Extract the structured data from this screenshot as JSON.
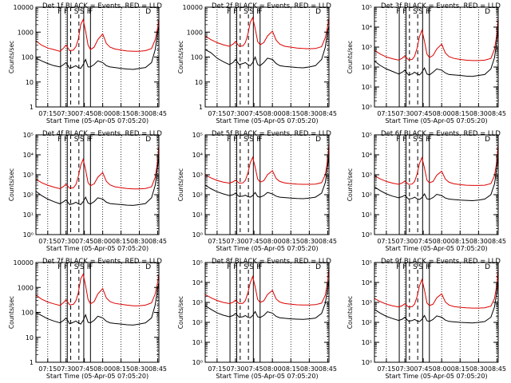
{
  "figure": {
    "start_time_label": "Start Time (05-Apr-05 07:05:20)",
    "ylabel": "Counts/sec",
    "xtick_labels": [
      "07:15",
      "07:30",
      "07:45",
      "08:00",
      "08:15",
      "08:30",
      "08:45"
    ],
    "event_marker_labels": [
      "F",
      "F",
      "S",
      "S",
      "F",
      "F",
      "D"
    ],
    "colors": {
      "events": "#000000",
      "lld": "#dd0000",
      "axes": "#000000"
    }
  },
  "chart_data": [
    {
      "type": "line",
      "title": "Det 1f BLACK = Events, RED = LLD",
      "yscale": "log",
      "ylim": [
        1,
        10000
      ],
      "ytick_labels": [
        "1",
        "10",
        "100",
        "1000",
        "10000"
      ],
      "xlabel": "Start Time (05-Apr-05 07:05:20)",
      "ylabel": "Counts/sec",
      "x_minutes_after_0700": [
        5.3,
        10,
        15,
        20,
        25,
        28,
        30,
        33,
        36,
        38,
        40,
        42,
        44,
        46,
        48,
        50,
        53,
        56,
        60,
        63,
        66,
        70,
        75,
        80,
        85,
        90,
        95,
        100,
        103,
        105,
        106
      ],
      "series": [
        {
          "name": "Events",
          "values": [
            90,
            70,
            55,
            45,
            40,
            50,
            60,
            35,
            40,
            45,
            38,
            35,
            50,
            80,
            40,
            40,
            50,
            70,
            60,
            45,
            40,
            38,
            35,
            33,
            32,
            35,
            38,
            60,
            200,
            1000,
            1800
          ]
        },
        {
          "name": "LLD",
          "values": [
            450,
            300,
            230,
            200,
            170,
            230,
            300,
            180,
            190,
            260,
            500,
            2000,
            3200,
            1100,
            300,
            200,
            250,
            500,
            850,
            350,
            250,
            210,
            190,
            175,
            170,
            170,
            180,
            220,
            500,
            1500,
            3500
          ]
        }
      ]
    },
    {
      "type": "line",
      "title": "Det 2f BLACK = Events, RED = LLD",
      "yscale": "log",
      "ylim": [
        1,
        10000
      ],
      "ytick_labels": [
        "1",
        "10",
        "100",
        "1000",
        "10000"
      ],
      "xlabel": "Start Time (05-Apr-05 07:05:20)",
      "ylabel": "Counts/sec",
      "x_minutes_after_0700": [
        5.3,
        10,
        15,
        20,
        25,
        28,
        30,
        33,
        36,
        38,
        40,
        42,
        44,
        46,
        48,
        50,
        53,
        56,
        60,
        63,
        66,
        70,
        75,
        80,
        85,
        90,
        95,
        100,
        103,
        105,
        106
      ],
      "series": [
        {
          "name": "Events",
          "values": [
            200,
            150,
            90,
            65,
            50,
            60,
            80,
            50,
            55,
            60,
            50,
            45,
            60,
            100,
            50,
            45,
            60,
            90,
            80,
            55,
            45,
            42,
            40,
            38,
            37,
            40,
            45,
            80,
            250,
            1100,
            1800
          ]
        },
        {
          "name": "LLD",
          "values": [
            700,
            500,
            380,
            310,
            270,
            330,
            420,
            270,
            280,
            380,
            800,
            2500,
            3800,
            1400,
            420,
            310,
            380,
            700,
            1100,
            480,
            330,
            270,
            250,
            230,
            220,
            215,
            220,
            260,
            600,
            1800,
            3800
          ]
        }
      ]
    },
    {
      "type": "line",
      "title": "Det 3f BLACK = Events, RED = LLD",
      "yscale": "log",
      "ylim": [
        1,
        100000
      ],
      "ytick_labels": [
        "10⁰",
        "10¹",
        "10²",
        "10³",
        "10⁴",
        "10⁵"
      ],
      "xlabel": "Start Time (05-Apr-05 07:05:20)",
      "ylabel": "Counts/sec",
      "x_minutes_after_0700": [
        5.3,
        10,
        15,
        20,
        25,
        28,
        30,
        33,
        36,
        38,
        40,
        42,
        44,
        46,
        48,
        50,
        53,
        56,
        60,
        63,
        66,
        70,
        75,
        80,
        85,
        90,
        95,
        100,
        103,
        105,
        106
      ],
      "series": [
        {
          "name": "Events",
          "values": [
            200,
            120,
            80,
            60,
            45,
            55,
            70,
            40,
            45,
            55,
            45,
            40,
            55,
            90,
            45,
            40,
            55,
            80,
            70,
            50,
            42,
            40,
            38,
            35,
            34,
            38,
            42,
            80,
            300,
            2500,
            8000
          ]
        },
        {
          "name": "LLD",
          "values": [
            700,
            450,
            320,
            260,
            220,
            280,
            360,
            230,
            240,
            350,
            900,
            3500,
            7000,
            2000,
            450,
            300,
            380,
            800,
            1400,
            500,
            330,
            270,
            240,
            220,
            210,
            210,
            220,
            270,
            800,
            5000,
            30000
          ]
        }
      ]
    },
    {
      "type": "line",
      "title": "Det 4f BLACK = Events, RED = LLD",
      "yscale": "log",
      "ylim": [
        1,
        100000
      ],
      "ytick_labels": [
        "10⁰",
        "10¹",
        "10²",
        "10³",
        "10⁴",
        "10⁵"
      ],
      "xlabel": "Start Time (05-Apr-05 07:05:20)",
      "ylabel": "Counts/sec",
      "x_minutes_after_0700": [
        5.3,
        10,
        15,
        20,
        25,
        28,
        30,
        33,
        36,
        38,
        40,
        42,
        44,
        46,
        48,
        50,
        53,
        56,
        60,
        63,
        66,
        70,
        75,
        80,
        85,
        90,
        95,
        100,
        103,
        105,
        106
      ],
      "series": [
        {
          "name": "Events",
          "values": [
            150,
            90,
            60,
            45,
            35,
            45,
            55,
            32,
            36,
            42,
            35,
            32,
            45,
            75,
            38,
            34,
            45,
            70,
            60,
            42,
            36,
            34,
            32,
            30,
            29,
            32,
            36,
            70,
            300,
            2800,
            9000
          ]
        },
        {
          "name": "LLD",
          "values": [
            600,
            400,
            300,
            240,
            200,
            260,
            340,
            210,
            220,
            320,
            800,
            3000,
            6000,
            1800,
            400,
            280,
            350,
            750,
            1300,
            470,
            310,
            250,
            225,
            205,
            195,
            195,
            205,
            250,
            750,
            5000,
            35000
          ]
        }
      ]
    },
    {
      "type": "line",
      "title": "Det 5f BLACK = Events, RED = LLD",
      "yscale": "log",
      "ylim": [
        1,
        100000
      ],
      "ytick_labels": [
        "10⁰",
        "10¹",
        "10²",
        "10³",
        "10⁴",
        "10⁵"
      ],
      "xlabel": "Start Time (05-Apr-05 07:05:20)",
      "ylabel": "Counts/sec",
      "x_minutes_after_0700": [
        5.3,
        10,
        15,
        20,
        25,
        28,
        30,
        33,
        36,
        38,
        40,
        42,
        44,
        46,
        48,
        50,
        53,
        56,
        60,
        63,
        66,
        70,
        75,
        80,
        85,
        90,
        95,
        100,
        103,
        105,
        106
      ],
      "series": [
        {
          "name": "Events",
          "values": [
            300,
            200,
            140,
            110,
            90,
            100,
            120,
            80,
            85,
            95,
            80,
            75,
            90,
            130,
            80,
            75,
            90,
            130,
            110,
            85,
            75,
            72,
            68,
            65,
            63,
            68,
            75,
            120,
            400,
            3000,
            9000
          ]
        },
        {
          "name": "LLD",
          "values": [
            1000,
            700,
            520,
            430,
            380,
            440,
            540,
            380,
            390,
            520,
            1200,
            4000,
            7500,
            2400,
            600,
            430,
            500,
            1000,
            1600,
            650,
            460,
            390,
            360,
            340,
            330,
            330,
            340,
            400,
            1000,
            6000,
            40000
          ]
        }
      ]
    },
    {
      "type": "line",
      "title": "Det 6f BLACK = Events, RED = LLD",
      "yscale": "log",
      "ylim": [
        1,
        100000
      ],
      "ytick_labels": [
        "10⁰",
        "10¹",
        "10²",
        "10³",
        "10⁴",
        "10⁵"
      ],
      "xlabel": "Start Time (05-Apr-05 07:05:20)",
      "ylabel": "Counts/sec",
      "x_minutes_after_0700": [
        5.3,
        10,
        15,
        20,
        25,
        28,
        30,
        33,
        36,
        38,
        40,
        42,
        44,
        46,
        48,
        50,
        53,
        56,
        60,
        63,
        66,
        70,
        75,
        80,
        85,
        90,
        95,
        100,
        103,
        105,
        106
      ],
      "series": [
        {
          "name": "Events",
          "values": [
            250,
            160,
            110,
            85,
            70,
            80,
            95,
            60,
            65,
            75,
            62,
            58,
            72,
            110,
            62,
            58,
            72,
            105,
            90,
            68,
            60,
            57,
            54,
            52,
            50,
            54,
            60,
            100,
            350,
            2800,
            8500
          ]
        },
        {
          "name": "LLD",
          "values": [
            900,
            620,
            460,
            380,
            330,
            390,
            480,
            330,
            340,
            460,
            1100,
            3800,
            7200,
            2200,
            540,
            390,
            460,
            950,
            1500,
            600,
            420,
            350,
            320,
            300,
            290,
            290,
            300,
            360,
            900,
            5500,
            38000
          ]
        }
      ]
    },
    {
      "type": "line",
      "title": "Det 7f BLACK = Events, RED = LLD",
      "yscale": "log",
      "ylim": [
        1,
        10000
      ],
      "ytick_labels": [
        "1",
        "10",
        "100",
        "1000",
        "10000"
      ],
      "xlabel": "Start Time (05-Apr-05 07:05:20)",
      "ylabel": "Counts/sec",
      "x_minutes_after_0700": [
        5.3,
        10,
        15,
        20,
        25,
        28,
        30,
        33,
        36,
        38,
        40,
        42,
        44,
        46,
        48,
        50,
        53,
        56,
        60,
        63,
        66,
        70,
        75,
        80,
        85,
        90,
        95,
        100,
        103,
        105,
        106
      ],
      "series": [
        {
          "name": "Events",
          "values": [
            100,
            75,
            55,
            45,
            38,
            48,
            60,
            35,
            40,
            45,
            38,
            34,
            48,
            80,
            40,
            38,
            48,
            70,
            60,
            44,
            38,
            36,
            34,
            32,
            31,
            34,
            38,
            60,
            200,
            900,
            1600
          ]
        },
        {
          "name": "LLD",
          "values": [
            500,
            340,
            260,
            220,
            190,
            250,
            320,
            200,
            210,
            290,
            600,
            2200,
            3400,
            1200,
            330,
            220,
            270,
            550,
            900,
            380,
            270,
            230,
            210,
            195,
            185,
            185,
            195,
            240,
            550,
            1600,
            3600
          ]
        }
      ]
    },
    {
      "type": "line",
      "title": "Det 8f BLACK = Events, RED = LLD",
      "yscale": "log",
      "ylim": [
        1,
        100000
      ],
      "ytick_labels": [
        "10⁰",
        "10¹",
        "10²",
        "10³",
        "10⁴",
        "10⁵"
      ],
      "xlabel": "Start Time (05-Apr-05 07:05:20)",
      "ylabel": "Counts/sec",
      "x_minutes_after_0700": [
        5.3,
        10,
        15,
        20,
        25,
        28,
        30,
        33,
        36,
        38,
        40,
        42,
        44,
        46,
        48,
        50,
        53,
        56,
        60,
        63,
        66,
        70,
        75,
        80,
        85,
        90,
        95,
        100,
        103,
        105,
        106
      ],
      "series": [
        {
          "name": "Events",
          "values": [
            700,
            450,
            300,
            230,
            190,
            220,
            280,
            180,
            190,
            220,
            180,
            170,
            220,
            350,
            190,
            175,
            220,
            340,
            290,
            200,
            170,
            160,
            150,
            145,
            140,
            150,
            165,
            280,
            900,
            5000,
            15000
          ]
        },
        {
          "name": "LLD",
          "values": [
            2500,
            1700,
            1250,
            1000,
            870,
            1020,
            1300,
            870,
            900,
            1250,
            3000,
            10000,
            20000,
            6000,
            1400,
            1000,
            1200,
            2500,
            4000,
            1500,
            1050,
            880,
            810,
            760,
            740,
            740,
            770,
            920,
            2300,
            12000,
            60000
          ]
        }
      ]
    },
    {
      "type": "line",
      "title": "Det 9f BLACK = Events, RED = LLD",
      "yscale": "log",
      "ylim": [
        1,
        100000
      ],
      "ytick_labels": [
        "10⁰",
        "10¹",
        "10²",
        "10³",
        "10⁴",
        "10⁵"
      ],
      "xlabel": "Start Time (05-Apr-05 07:05:20)",
      "ylabel": "Counts/sec",
      "x_minutes_after_0700": [
        5.3,
        10,
        15,
        20,
        25,
        28,
        30,
        33,
        36,
        38,
        40,
        42,
        44,
        46,
        48,
        50,
        53,
        56,
        60,
        63,
        66,
        70,
        75,
        80,
        85,
        90,
        95,
        100,
        103,
        105,
        106
      ],
      "series": [
        {
          "name": "Events",
          "values": [
            450,
            290,
            200,
            155,
            125,
            145,
            180,
            115,
            122,
            140,
            118,
            110,
            140,
            220,
            120,
            112,
            140,
            210,
            180,
            130,
            112,
            106,
            100,
            96,
            93,
            100,
            110,
            180,
            600,
            4000,
            12000
          ]
        },
        {
          "name": "LLD",
          "values": [
            1600,
            1100,
            820,
            680,
            590,
            690,
            860,
            590,
            610,
            830,
            2000,
            7000,
            14000,
            4200,
            950,
            690,
            820,
            1700,
            2700,
            1050,
            740,
            620,
            570,
            540,
            520,
            520,
            540,
            650,
            1600,
            9000,
            50000
          ]
        }
      ]
    }
  ]
}
